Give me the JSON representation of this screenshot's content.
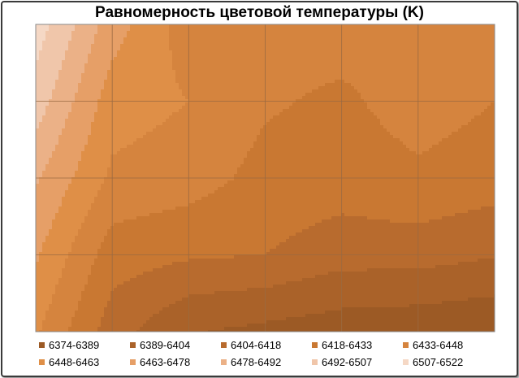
{
  "chart_data": {
    "type": "heatmap",
    "subtype": "filled-contour",
    "title": "Равномерность цветовой температуры (K)",
    "xlabel": "",
    "ylabel": "",
    "grid": true,
    "legend_position": "bottom",
    "color_scale": "dark-brown (low) to pale pink (high)",
    "levels": [
      {
        "label": "6374-6389",
        "min": 6374,
        "max": 6389,
        "color": "#9c5a25"
      },
      {
        "label": "6389-6404",
        "min": 6389,
        "max": 6404,
        "color": "#aa6229"
      },
      {
        "label": "6404-6418",
        "min": 6404,
        "max": 6418,
        "color": "#b86b2e"
      },
      {
        "label": "6418-6433",
        "min": 6418,
        "max": 6433,
        "color": "#c97832"
      },
      {
        "label": "6433-6448",
        "min": 6433,
        "max": 6448,
        "color": "#d5843e"
      },
      {
        "label": "6448-6463",
        "min": 6448,
        "max": 6463,
        "color": "#df8f47"
      },
      {
        "label": "6463-6478",
        "min": 6463,
        "max": 6478,
        "color": "#e69f67"
      },
      {
        "label": "6478-6492",
        "min": 6478,
        "max": 6492,
        "color": "#ebb187"
      },
      {
        "label": "6492-6507",
        "min": 6492,
        "max": 6507,
        "color": "#f0c6aa"
      },
      {
        "label": "6507-6522",
        "min": 6507,
        "max": 6522,
        "color": "#f5d8c5"
      }
    ],
    "grid_values": [
      [
        6515,
        6470,
        6440,
        6440,
        6440,
        6440,
        6440
      ],
      [
        6500,
        6455,
        6448,
        6435,
        6430,
        6440,
        6433
      ],
      [
        6480,
        6445,
        6440,
        6428,
        6425,
        6430,
        6425
      ],
      [
        6465,
        6425,
        6420,
        6418,
        6410,
        6410,
        6405
      ],
      [
        6450,
        6410,
        6390,
        6385,
        6380,
        6378,
        6375
      ]
    ]
  }
}
